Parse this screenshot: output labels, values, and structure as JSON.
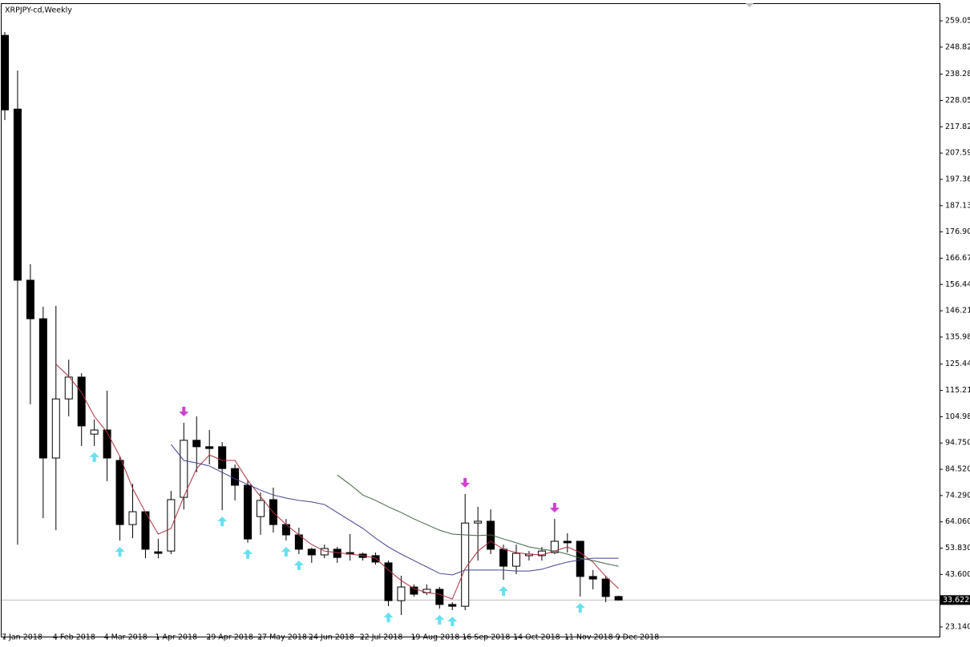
{
  "chart_data": {
    "type": "candlestick",
    "title": "XRPJPY-cd,Weekly",
    "categories": [
      "7 Jan 2018",
      null,
      null,
      null,
      "4 Feb 2018",
      null,
      null,
      null,
      "4 Mar 2018",
      null,
      null,
      null,
      "1 Apr 2018",
      null,
      null,
      null,
      "29 Apr 2018",
      null,
      null,
      null,
      "27 May 2018",
      null,
      null,
      null,
      "24 Jun 2018",
      null,
      null,
      null,
      "22 Jul 2018",
      null,
      null,
      null,
      "19 Aug 2018",
      null,
      null,
      null,
      "16 Sep 2018",
      null,
      null,
      null,
      "14 Oct 2018",
      null,
      null,
      null,
      "11 Nov 2018",
      null,
      null,
      null,
      "9 Dec 2018"
    ],
    "open": [
      253.4,
      224.7,
      158.1,
      143.1,
      88.9,
      111.9,
      120.4,
      98.2,
      99.8,
      87.96,
      63.0,
      68.0,
      52.4,
      52.7,
      73.6,
      95.8,
      93.3,
      93.3,
      84.8,
      78.3,
      66.1,
      72.7,
      63.0,
      58.98,
      53.4,
      51.2,
      53.4,
      52.1,
      51.5,
      50.9,
      48.1,
      33.4,
      38.7,
      36.5,
      37.8,
      31.9,
      31.2,
      63.6,
      64.3,
      53.4,
      46.8,
      50.9,
      50.9,
      52.1,
      56.5,
      56.5,
      42.8,
      41.8,
      35.0
    ],
    "high": [
      254.7,
      239.7,
      164.3,
      147.8,
      148.1,
      127.2,
      121.9,
      103.9,
      115.1,
      89.5,
      78.9,
      68.0,
      57.4,
      76.1,
      102.6,
      105.1,
      99.8,
      95.1,
      86.4,
      80.2,
      75.5,
      77.4,
      65.2,
      61.8,
      54.0,
      55.2,
      54.3,
      59.3,
      52.1,
      52.1,
      49.0,
      43.1,
      39.7,
      39.7,
      38.7,
      32.8,
      74.9,
      69.9,
      68.9,
      55.2,
      55.2,
      52.7,
      54.3,
      65.2,
      59.6,
      56.5,
      45.3,
      43.1,
      35.3
    ],
    "low": [
      220.4,
      55.2,
      109.8,
      65.5,
      60.8,
      105.1,
      93.6,
      93.6,
      79.9,
      56.8,
      57.7,
      49.9,
      49.9,
      51.5,
      68.9,
      83.3,
      86.4,
      68.6,
      72.4,
      55.9,
      58.98,
      59.9,
      56.8,
      51.5,
      48.1,
      49.9,
      48.1,
      49.0,
      49.0,
      47.4,
      31.2,
      27.8,
      35.0,
      35.6,
      30.3,
      29.7,
      29.7,
      49.0,
      51.5,
      41.5,
      43.7,
      49.0,
      49.0,
      51.5,
      52.1,
      35.0,
      37.8,
      32.8,
      33.4
    ],
    "close": [
      224.4,
      158.1,
      143.1,
      88.9,
      111.9,
      120.4,
      101.4,
      99.8,
      88.9,
      63.0,
      68.0,
      53.4,
      51.8,
      72.7,
      95.8,
      93.3,
      92.6,
      84.8,
      78.3,
      57.4,
      72.4,
      63.0,
      58.98,
      53.4,
      51.2,
      53.7,
      50.2,
      51.5,
      50.2,
      48.4,
      33.4,
      38.7,
      35.9,
      37.8,
      31.9,
      31.2,
      63.6,
      64.3,
      53.4,
      46.8,
      51.8,
      51.5,
      52.7,
      56.5,
      55.9,
      42.8,
      41.8,
      35.0,
      33.622
    ],
    "up_color": "#ffffff",
    "down_color": "#000000",
    "moving_averages": [
      {
        "color": "#b03040",
        "values": [
          null,
          null,
          null,
          null,
          125.4,
          120.7,
          114.4,
          105.1,
          98.9,
          89.5,
          77.1,
          67.7,
          59.3,
          61.5,
          73.9,
          84.8,
          90.1,
          87.96,
          87.96,
          80.2,
          73.9,
          67.7,
          63.0,
          58.98,
          55.2,
          52.7,
          52.1,
          51.5,
          50.9,
          49.9,
          45.3,
          41.2,
          38.1,
          36.5,
          35.9,
          34.0,
          45.9,
          52.7,
          56.5,
          53.4,
          52.1,
          51.5,
          51.2,
          52.7,
          54.3,
          52.1,
          48.4,
          42.8,
          38.1
        ]
      },
      {
        "color": "#404090",
        "values": [
          null,
          null,
          null,
          null,
          null,
          null,
          null,
          null,
          null,
          null,
          null,
          null,
          null,
          94.2,
          87.96,
          87.0,
          85.8,
          83.3,
          80.8,
          78.6,
          76.4,
          74.5,
          73.3,
          72.4,
          71.8,
          70.8,
          67.7,
          64.6,
          61.5,
          57.7,
          54.3,
          51.5,
          49.0,
          46.5,
          44.0,
          43.4,
          45.3,
          45.3,
          45.3,
          45.3,
          44.9,
          44.9,
          45.6,
          47.1,
          48.4,
          49.3,
          49.9,
          49.9,
          49.9
        ]
      },
      {
        "color": "#406840",
        "values": [
          null,
          null,
          null,
          null,
          null,
          null,
          null,
          null,
          null,
          null,
          null,
          null,
          null,
          null,
          null,
          null,
          null,
          null,
          null,
          null,
          null,
          null,
          null,
          null,
          null,
          null,
          82.3,
          78.6,
          74.5,
          72.4,
          69.9,
          67.7,
          65.2,
          63.0,
          60.8,
          59.3,
          58.98,
          58.7,
          58.98,
          57.4,
          55.9,
          54.3,
          53.4,
          52.7,
          51.5,
          49.9,
          49.0,
          47.8,
          46.8
        ]
      }
    ],
    "signals_up": [
      7,
      9,
      17,
      19,
      22,
      23,
      30,
      34,
      35,
      39,
      45
    ],
    "signals_down": [
      14,
      36,
      43
    ],
    "signal_up_color": "#66e0f0",
    "signal_down_color": "#d040d0",
    "current_price": 33.622,
    "ylim": [
      19.4,
      265.6
    ],
    "yticks": [
      {
        "value": 259.05,
        "label": "259.050"
      },
      {
        "value": 248.82,
        "label": "248.820"
      },
      {
        "value": 238.28,
        "label": "238.280"
      },
      {
        "value": 228.05,
        "label": "228.050"
      },
      {
        "value": 217.82,
        "label": "217.820"
      },
      {
        "value": 207.59,
        "label": "207.590"
      },
      {
        "value": 197.36,
        "label": "197.360"
      },
      {
        "value": 187.13,
        "label": "187.130"
      },
      {
        "value": 176.9,
        "label": "176.900"
      },
      {
        "value": 166.67,
        "label": "166.670"
      },
      {
        "value": 156.44,
        "label": "156.440"
      },
      {
        "value": 146.21,
        "label": "146.210"
      },
      {
        "value": 135.98,
        "label": "135.980"
      },
      {
        "value": 125.44,
        "label": "125.440"
      },
      {
        "value": 115.21,
        "label": "115.210"
      },
      {
        "value": 104.98,
        "label": "104.980"
      },
      {
        "value": 94.75,
        "label": "94.750"
      },
      {
        "value": 84.52,
        "label": "84.520"
      },
      {
        "value": 74.29,
        "label": "74.290"
      },
      {
        "value": 64.06,
        "label": "64.060"
      },
      {
        "value": 53.83,
        "label": "53.830"
      },
      {
        "value": 43.6,
        "label": "43.600"
      },
      {
        "value": 23.14,
        "label": "23.140"
      }
    ]
  }
}
